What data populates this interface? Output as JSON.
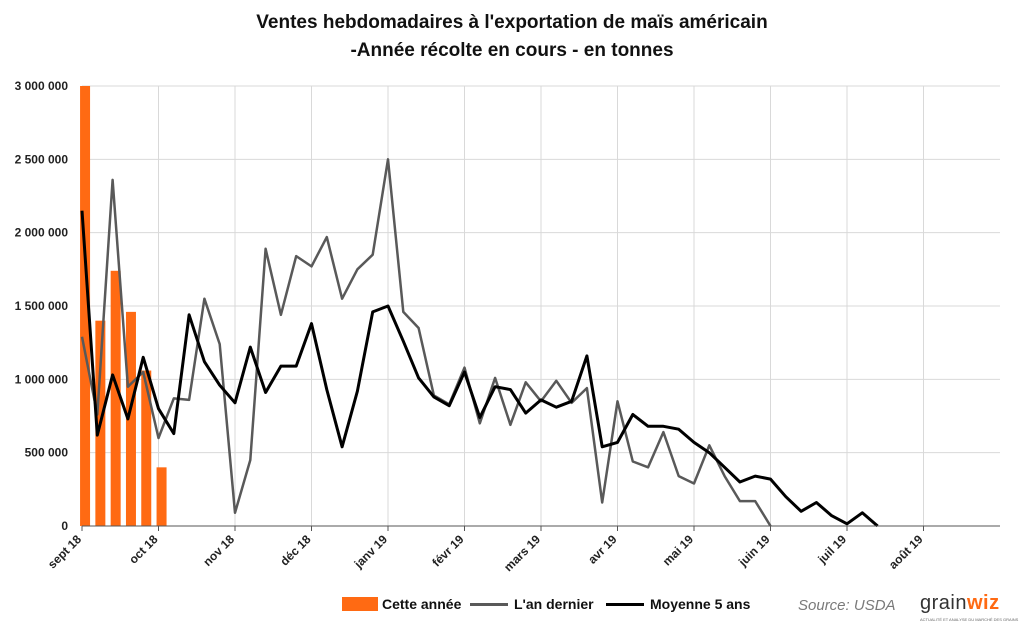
{
  "chart_data": {
    "type": "bar+line",
    "title": "Ventes hebdomadaires à l'exportation de maïs américain",
    "subtitle": "-Année récolte en cours - en tonnes",
    "ylim": [
      0,
      3000000
    ],
    "yticks": [
      {
        "value": 0,
        "label": "0"
      },
      {
        "value": 500000,
        "label": "500 000"
      },
      {
        "value": 1000000,
        "label": "1 000 000"
      },
      {
        "value": 1500000,
        "label": "1 500 000"
      },
      {
        "value": 2000000,
        "label": "2 000 000"
      },
      {
        "value": 2500000,
        "label": "2 500 000"
      },
      {
        "value": 3000000,
        "label": "3 000 000"
      }
    ],
    "weeks": 53,
    "month_ticks": [
      {
        "week": 0,
        "label": "sept 18"
      },
      {
        "week": 5,
        "label": "oct 18"
      },
      {
        "week": 10,
        "label": "nov 18"
      },
      {
        "week": 15,
        "label": "déc 18"
      },
      {
        "week": 20,
        "label": "janv 19"
      },
      {
        "week": 25,
        "label": "févr 19"
      },
      {
        "week": 30,
        "label": "mars 19"
      },
      {
        "week": 35,
        "label": "avr 19"
      },
      {
        "week": 40,
        "label": "mai 19"
      },
      {
        "week": 45,
        "label": "juin 19"
      },
      {
        "week": 50,
        "label": "juil 19"
      },
      {
        "week": 55,
        "label": "août 19"
      }
    ],
    "grid": true,
    "legend_position": "bottom",
    "series": [
      {
        "name": "Cette année",
        "kind": "bar",
        "color": "#ff6a13",
        "values": [
          3000000,
          1400000,
          1740000,
          1460000,
          1060000,
          400000
        ]
      },
      {
        "name": "L'an dernier",
        "kind": "line",
        "color": "#595959",
        "values": [
          1290000,
          760000,
          2360000,
          950000,
          1050000,
          600000,
          870000,
          860000,
          1550000,
          1240000,
          90000,
          450000,
          1890000,
          1440000,
          1840000,
          1770000,
          1970000,
          1550000,
          1750000,
          1850000,
          2500000,
          1460000,
          1350000,
          890000,
          830000,
          1080000,
          700000,
          1010000,
          690000,
          980000,
          850000,
          990000,
          840000,
          940000,
          160000,
          850000,
          440000,
          400000,
          640000,
          340000,
          290000,
          550000,
          340000,
          170000,
          170000,
          0
        ]
      },
      {
        "name": "Moyenne 5 ans",
        "kind": "line",
        "color": "#000000",
        "values": [
          2150000,
          620000,
          1030000,
          730000,
          1150000,
          800000,
          630000,
          1440000,
          1120000,
          960000,
          840000,
          1220000,
          910000,
          1090000,
          1090000,
          1380000,
          930000,
          540000,
          920000,
          1460000,
          1500000,
          1260000,
          1010000,
          880000,
          820000,
          1050000,
          740000,
          950000,
          930000,
          770000,
          860000,
          810000,
          850000,
          1160000,
          540000,
          570000,
          760000,
          680000,
          680000,
          660000,
          570000,
          500000,
          400000,
          300000,
          340000,
          320000,
          200000,
          100000,
          160000,
          70000,
          15000,
          90000,
          0
        ]
      }
    ],
    "source": "Source: USDA"
  },
  "logo": {
    "name_part1": "grain",
    "name_part2": "wiz",
    "tagline": "ACTUALITÉ ET ANALYSE DU MARCHÉ DES GRAINS"
  }
}
